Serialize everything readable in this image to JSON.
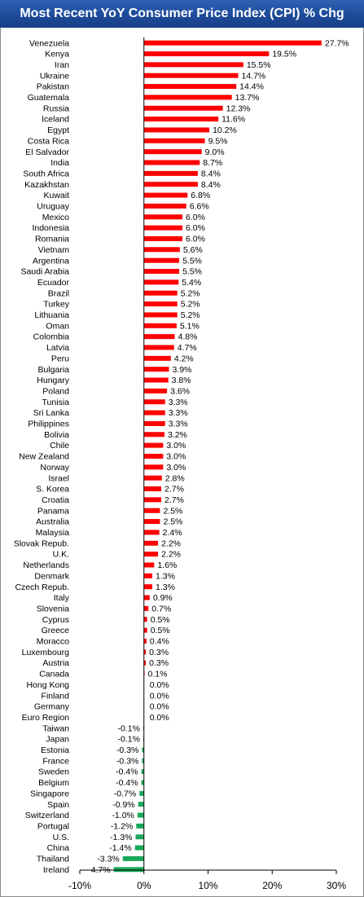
{
  "header": {
    "title": "Most Recent YoY Consumer Price Index (CPI) % Chg"
  },
  "colors": {
    "positive": "#ff0000",
    "negative": "#1aa85a",
    "title_bg": "#1d4b9a",
    "axis": "#000000"
  },
  "chart_data": {
    "type": "bar",
    "orientation": "horizontal",
    "title": "Most Recent YoY Consumer Price Index (CPI) % Chg",
    "xlim": [
      -10,
      30
    ],
    "xticks": [
      -10,
      0,
      10,
      20,
      30
    ],
    "xtick_labels": [
      "-10%",
      "0%",
      "10%",
      "20%",
      "30%"
    ],
    "grid": false,
    "legend": "none",
    "categories": [
      "Venezuela",
      "Kenya",
      "Iran",
      "Ukraine",
      "Pakistan",
      "Guatemala",
      "Russia",
      "Iceland",
      "Egypt",
      "Costa Rica",
      "El Salvador",
      "India",
      "South Africa",
      "Kazakhstan",
      "Kuwait",
      "Uruguay",
      "Mexico",
      "Indonesia",
      "Romania",
      "Vietnam",
      "Argentina",
      "Saudi Arabia",
      "Ecuador",
      "Brazil",
      "Turkey",
      "Lithuania",
      "Oman",
      "Colombia",
      "Latvia",
      "Peru",
      "Bulgaria",
      "Hungary",
      "Poland",
      "Tunisia",
      "Sri Lanka",
      "Philippines",
      "Bolivia",
      "Chile",
      "New Zealand",
      "Norway",
      "Israel",
      "S. Korea",
      "Croatia",
      "Panama",
      "Australia",
      "Malaysia",
      "Slovak Repub.",
      "U.K.",
      "Netherlands",
      "Denmark",
      "Czech Repub.",
      "Italy",
      "Slovenia",
      "Cyprus",
      "Greece",
      "Moracco",
      "Luxembourg",
      "Austria",
      "Canada",
      "Hong Kong",
      "Finland",
      "Germany",
      "Euro Region",
      "Taiwan",
      "Japan",
      "Estonia",
      "France",
      "Sweden",
      "Belgium",
      "Singapore",
      "Spain",
      "Switzerland",
      "Portugal",
      "U.S.",
      "China",
      "Thailand",
      "Ireland"
    ],
    "values": [
      27.7,
      19.5,
      15.5,
      14.7,
      14.4,
      13.7,
      12.3,
      11.6,
      10.2,
      9.5,
      9.0,
      8.7,
      8.4,
      8.4,
      6.8,
      6.6,
      6.0,
      6.0,
      6.0,
      5.6,
      5.5,
      5.5,
      5.4,
      5.2,
      5.2,
      5.2,
      5.1,
      4.8,
      4.7,
      4.2,
      3.9,
      3.8,
      3.6,
      3.3,
      3.3,
      3.3,
      3.2,
      3.0,
      3.0,
      3.0,
      2.8,
      2.7,
      2.7,
      2.5,
      2.5,
      2.4,
      2.2,
      2.2,
      1.6,
      1.3,
      1.3,
      0.9,
      0.7,
      0.5,
      0.5,
      0.4,
      0.3,
      0.3,
      0.1,
      0.0,
      0.0,
      0.0,
      0.0,
      -0.1,
      -0.1,
      -0.3,
      -0.3,
      -0.4,
      -0.4,
      -0.7,
      -0.9,
      -1.0,
      -1.2,
      -1.3,
      -1.4,
      -3.3,
      -4.7
    ],
    "value_labels": [
      "27.7%",
      "19.5%",
      "15.5%",
      "14.7%",
      "14.4%",
      "13.7%",
      "12.3%",
      "11.6%",
      "10.2%",
      "9.5%",
      "9.0%",
      "8.7%",
      "8.4%",
      "8.4%",
      "6.8%",
      "6.6%",
      "6.0%",
      "6.0%",
      "6.0%",
      "5.6%",
      "5.5%",
      "5.5%",
      "5.4%",
      "5.2%",
      "5.2%",
      "5.2%",
      "5.1%",
      "4.8%",
      "4.7%",
      "4.2%",
      "3.9%",
      "3.8%",
      "3.6%",
      "3.3%",
      "3.3%",
      "3.3%",
      "3.2%",
      "3.0%",
      "3.0%",
      "3.0%",
      "2.8%",
      "2.7%",
      "2.7%",
      "2.5%",
      "2.5%",
      "2.4%",
      "2.2%",
      "2.2%",
      "1.6%",
      "1.3%",
      "1.3%",
      "0.9%",
      "0.7%",
      "0.5%",
      "0.5%",
      "0.4%",
      "0.3%",
      "0.3%",
      "0.1%",
      "0.0%",
      "0.0%",
      "0.0%",
      "0.0%",
      "-0.1%",
      "-0.1%",
      "-0.3%",
      "-0.3%",
      "-0.4%",
      "-0.4%",
      "-0.7%",
      "-0.9%",
      "-1.0%",
      "-1.2%",
      "-1.3%",
      "-1.4%",
      "-3.3%",
      "-4.7%"
    ]
  }
}
